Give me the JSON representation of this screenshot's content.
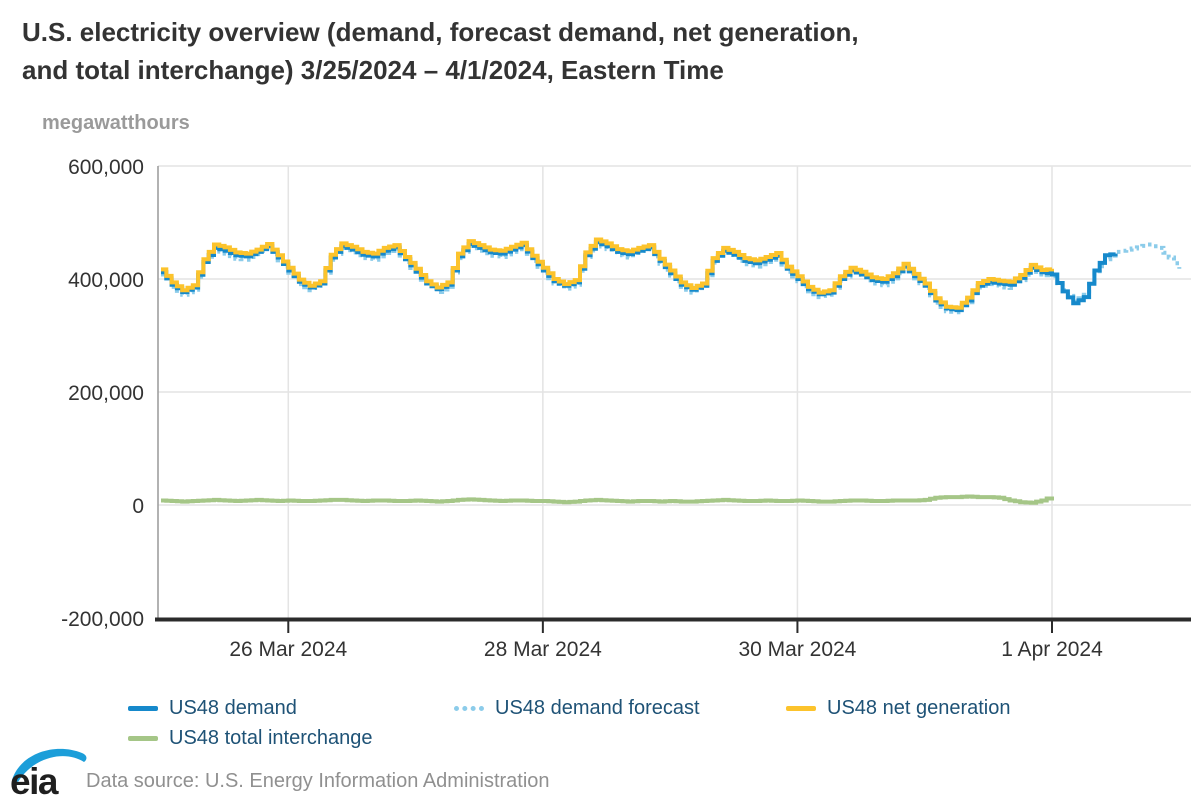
{
  "title": {
    "line1": "U.S. electricity overview (demand, forecast demand, net generation,",
    "line2": "and total interchange) 3/25/2024 – 4/1/2024, Eastern Time"
  },
  "y_axis_unit_label": "megawatthours",
  "footer": {
    "logo_text": "eia",
    "data_source": "Data source: U.S. Energy Information Administration"
  },
  "colors": {
    "demand": "#1689cb",
    "demand_forecast": "#8cccea",
    "net_generation": "#fcc32c",
    "total_interchange": "#a5c687",
    "legend_text": "#1e5276",
    "axis_text": "#333333",
    "grid": "#e4e4e4",
    "left_axis": "#999999",
    "bottom_axis": "#2b2b2b",
    "eia_blue": "#1c9ed9"
  },
  "legend": [
    {
      "label": "US48 demand",
      "style": "solid",
      "color": "#1689cb"
    },
    {
      "label": "US48 demand forecast",
      "style": "dotted",
      "color": "#8cccea"
    },
    {
      "label": "US48 net generation",
      "style": "solid",
      "color": "#fcc32c"
    },
    {
      "label": "US48 total interchange",
      "style": "solid",
      "color": "#a5c687"
    }
  ],
  "chart_data": {
    "type": "line",
    "title": "U.S. electricity overview (demand, forecast demand, net generation, and total interchange) 3/25/2024 – 4/1/2024, Eastern Time",
    "ylabel": "megawatthours",
    "ylim": [
      -200000,
      600000
    ],
    "xlim_hours": [
      0,
      193
    ],
    "grid": true,
    "legend_position": "bottom",
    "y_ticks": [
      {
        "value": 600000,
        "label": "600,000"
      },
      {
        "value": 400000,
        "label": "400,000"
      },
      {
        "value": 200000,
        "label": "200,000"
      },
      {
        "value": 0,
        "label": "0"
      },
      {
        "value": -200000,
        "label": "-200,000"
      }
    ],
    "x_ticks": [
      {
        "hour": 24,
        "label": "26 Mar 2024"
      },
      {
        "hour": 72,
        "label": "28 Mar 2024"
      },
      {
        "hour": 120,
        "label": "30 Mar 2024"
      },
      {
        "hour": 168,
        "label": "1 Apr 2024"
      }
    ],
    "series": [
      {
        "name": "US48 demand forecast",
        "color": "#8cccea",
        "dash": "dotted",
        "width": 4,
        "start_hour": 0,
        "step_hours": 2,
        "values": [
          408000,
          386000,
          372000,
          381000,
          427000,
          452000,
          445000,
          436000,
          434000,
          444000,
          455000,
          433000,
          411000,
          391000,
          380000,
          388000,
          434000,
          455000,
          447000,
          437000,
          434000,
          446000,
          453000,
          430000,
          409000,
          388000,
          377000,
          386000,
          437000,
          459000,
          450000,
          441000,
          439000,
          448000,
          457000,
          432000,
          411000,
          392000,
          383000,
          390000,
          439000,
          462000,
          453000,
          442000,
          438000,
          446000,
          453000,
          427000,
          406000,
          386000,
          376000,
          384000,
          429000,
          447000,
          438000,
          426000,
          422000,
          430000,
          438000,
          413000,
          396000,
          378000,
          368000,
          372000,
          397000,
          412000,
          403000,
          392000,
          389000,
          401000,
          419000,
          401000,
          384000,
          358000,
          343000,
          341000,
          359000,
          385000,
          391000,
          386000,
          384000,
          398000,
          417000,
          408000,
          405000,
          380000,
          360000,
          372000,
          410000,
          435000,
          448000,
          452000,
          456000,
          461000,
          455000,
          438000,
          418000
        ]
      },
      {
        "name": "US48 demand",
        "color": "#1689cb",
        "dash": "solid",
        "width": 4,
        "start_hour": 0,
        "step_hours": 2,
        "values": [
          412000,
          390000,
          377000,
          385000,
          430000,
          455000,
          450000,
          442000,
          440000,
          448000,
          458000,
          438000,
          415000,
          395000,
          385000,
          392000,
          438000,
          458000,
          452000,
          443000,
          440000,
          450000,
          456000,
          435000,
          413000,
          392000,
          382000,
          390000,
          440000,
          462000,
          455000,
          447000,
          445000,
          452000,
          460000,
          437000,
          415000,
          396000,
          388000,
          394000,
          442000,
          465000,
          458000,
          448000,
          444000,
          450000,
          456000,
          432000,
          410000,
          390000,
          381000,
          388000,
          432000,
          450000,
          443000,
          432000,
          428000,
          434000,
          441000,
          418000,
          400000,
          382000,
          373000,
          376000,
          400000,
          415000,
          408000,
          398000,
          395000,
          405000,
          422000,
          405000,
          388000,
          362000,
          348000,
          345000,
          362000,
          388000,
          395000,
          392000,
          390000,
          402000,
          420000,
          412000,
          408000,
          378000,
          357000,
          368000,
          415000,
          442000,
          445000
        ]
      },
      {
        "name": "US48 net generation",
        "color": "#fcc32c",
        "dash": "solid",
        "width": 4,
        "start_hour": 0,
        "step_hours": 2,
        "values": [
          417000,
          394000,
          380000,
          389000,
          435000,
          461000,
          456000,
          447000,
          445000,
          452000,
          462000,
          442000,
          420000,
          399000,
          388000,
          396000,
          443000,
          463000,
          457000,
          448000,
          445000,
          455000,
          460000,
          439000,
          418000,
          396000,
          385000,
          394000,
          445000,
          467000,
          460000,
          452000,
          450000,
          457000,
          464000,
          441000,
          420000,
          400000,
          391000,
          398000,
          447000,
          470000,
          463000,
          453000,
          449000,
          455000,
          460000,
          436000,
          415000,
          394000,
          384000,
          392000,
          437000,
          455000,
          448000,
          437000,
          433000,
          439000,
          446000,
          422000,
          405000,
          386000,
          376000,
          380000,
          405000,
          420000,
          413000,
          403000,
          400000,
          410000,
          427000,
          409000,
          392000,
          366000,
          351000,
          349000,
          367000,
          393000,
          400000,
          397000,
          395000,
          407000,
          425000,
          416000,
          418000
        ]
      },
      {
        "name": "US48 total interchange",
        "color": "#a5c687",
        "dash": "solid",
        "width": 4,
        "start_hour": 0,
        "step_hours": 2,
        "values": [
          8000,
          7000,
          6000,
          7000,
          8000,
          9000,
          8000,
          7000,
          8000,
          9000,
          8000,
          7000,
          8000,
          7000,
          7000,
          8000,
          9000,
          9000,
          8000,
          7000,
          8000,
          8000,
          7000,
          7000,
          8000,
          7000,
          6000,
          7000,
          9000,
          10000,
          9000,
          8000,
          7000,
          8000,
          8000,
          7000,
          7000,
          6000,
          5000,
          6000,
          8000,
          9000,
          8000,
          7000,
          6000,
          7000,
          7000,
          6000,
          7000,
          6000,
          6000,
          7000,
          8000,
          9000,
          8000,
          7000,
          7000,
          8000,
          7000,
          7000,
          8000,
          7000,
          6000,
          6000,
          7000,
          8000,
          8000,
          7000,
          7000,
          8000,
          8000,
          8000,
          9000,
          13000,
          14000,
          14000,
          15000,
          14000,
          14000,
          13000,
          8000,
          5000,
          4000,
          8000,
          15000
        ]
      }
    ]
  }
}
